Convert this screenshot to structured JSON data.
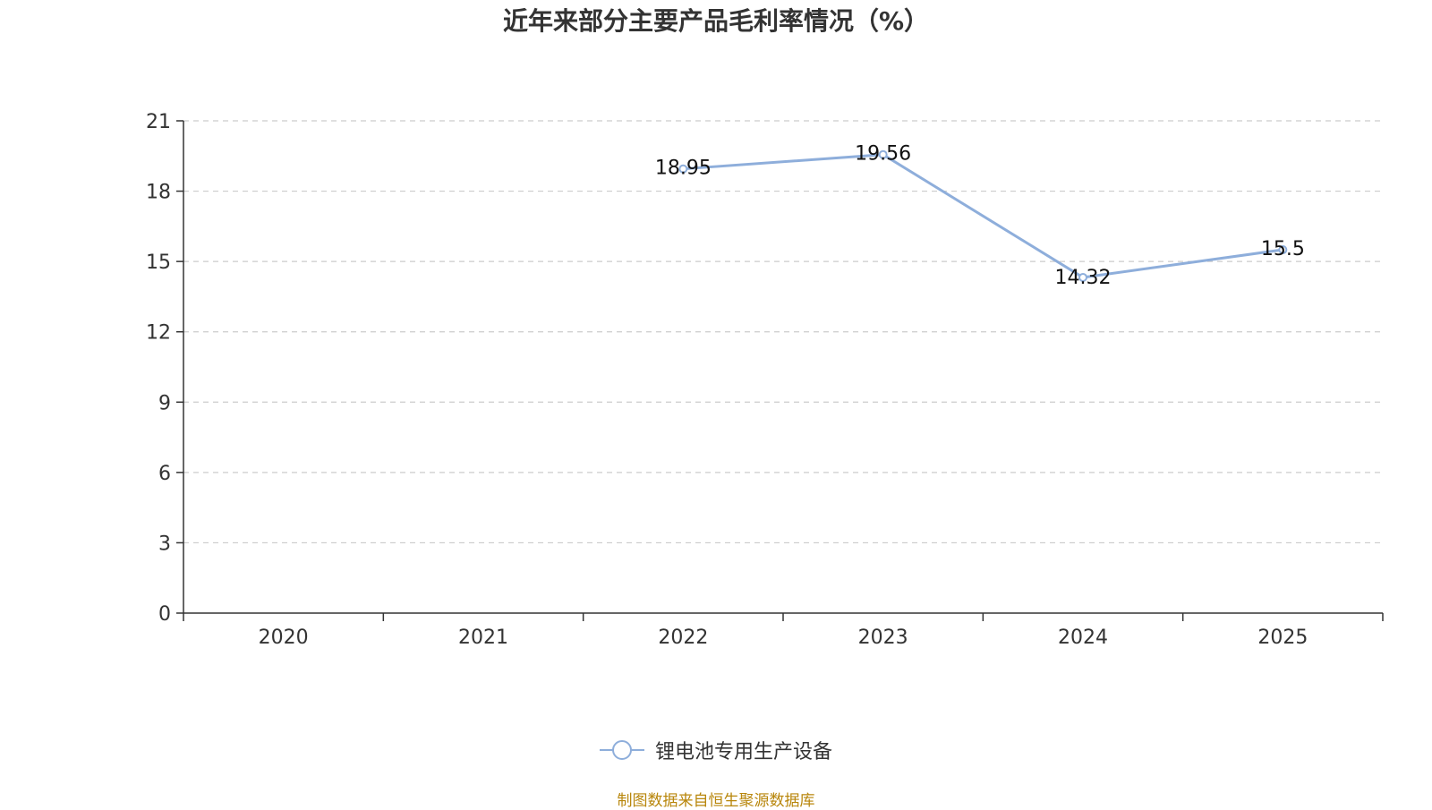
{
  "chart_data": {
    "type": "line",
    "title": "近年来部分主要产品毛利率情况（%）",
    "categories": [
      "2020",
      "2021",
      "2022",
      "2023",
      "2024",
      "2025"
    ],
    "series": [
      {
        "name": "锂电池专用生产设备",
        "values": [
          null,
          null,
          18.95,
          19.56,
          14.32,
          15.5
        ],
        "labels": [
          "",
          "",
          "18.95",
          "19.56",
          "14.32",
          "15.5"
        ],
        "color": "#8eaedb"
      }
    ],
    "y_ticks": [
      "0",
      "3",
      "6",
      "9",
      "12",
      "15",
      "18",
      "21"
    ],
    "ylim": [
      0,
      21
    ],
    "grid": true,
    "legend_position": "bottom"
  },
  "source_note": "制图数据来自恒生聚源数据库"
}
